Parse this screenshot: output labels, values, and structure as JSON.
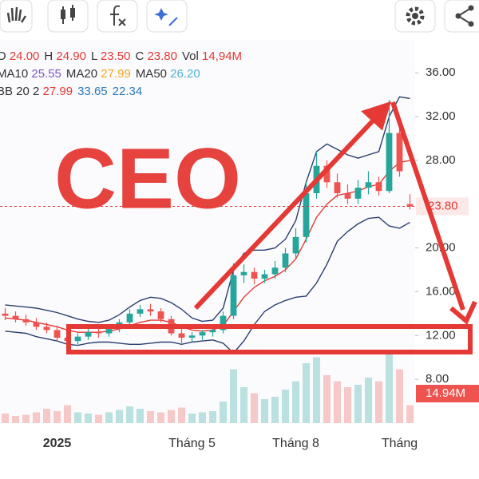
{
  "chart_data": {
    "type": "candlestick",
    "annotation": "CEO",
    "legend": [
      [
        {
          "label": "O",
          "value": "24.00",
          "color": "#e53935"
        },
        {
          "label": "H",
          "value": "24.90",
          "color": "#e53935"
        },
        {
          "label": "L",
          "value": "23.50",
          "color": "#e53935"
        },
        {
          "label": "C",
          "value": "23.80",
          "color": "#e53935"
        },
        {
          "label": "Vol",
          "value": "14,94M",
          "color": "#e53935"
        }
      ],
      [
        {
          "label": "MA10",
          "value": "25.55",
          "color": "#7e57c2"
        },
        {
          "label": "MA20",
          "value": "27.99",
          "color": "#f5a623"
        },
        {
          "label": "MA50",
          "value": "26.20",
          "color": "#4fb3d9"
        }
      ],
      [
        {
          "label": "BB 20 2",
          "value": "27.99",
          "color": "#e53935"
        },
        {
          "label": "",
          "value": "33.65",
          "color": "#2a7ab8"
        },
        {
          "label": "",
          "value": "22.34",
          "color": "#2a7ab8"
        }
      ]
    ],
    "categories": [
      null,
      null,
      null,
      null,
      null,
      "2025",
      null,
      null,
      null,
      null,
      null,
      null,
      null,
      null,
      null,
      null,
      null,
      null,
      "Tháng 5",
      null,
      null,
      null,
      null,
      null,
      null,
      null,
      null,
      null,
      "Tháng 8",
      null,
      null,
      null,
      null,
      null,
      null,
      null,
      null,
      null,
      "Tháng",
      null
    ],
    "open": [
      14.0,
      13.8,
      13.5,
      13.2,
      12.8,
      12.5,
      11.8,
      11.5,
      11.9,
      12.3,
      12.2,
      12.6,
      13.2,
      14.0,
      14.4,
      14.2,
      13.5,
      12.2,
      11.8,
      12.0,
      12.3,
      12.5,
      13.8,
      17.5,
      17.8,
      17.2,
      17.6,
      18.2,
      19.5,
      21.0,
      25.0,
      27.5,
      26.0,
      25.0,
      24.5,
      25.5,
      26.0,
      25.2,
      30.5,
      24.0
    ],
    "high": [
      14.5,
      14.2,
      13.9,
      13.6,
      13.2,
      12.9,
      12.2,
      12.2,
      12.6,
      12.7,
      12.9,
      13.5,
      14.4,
      14.8,
      14.9,
      14.5,
      13.8,
      12.6,
      12.3,
      12.5,
      12.8,
      14.2,
      18.6,
      18.5,
      18.2,
      18.0,
      18.8,
      20.0,
      21.8,
      26.0,
      28.8,
      28.0,
      26.8,
      25.8,
      26.2,
      27.0,
      26.5,
      33.5,
      31.5,
      24.9
    ],
    "low": [
      13.4,
      13.2,
      12.9,
      12.5,
      12.2,
      11.5,
      11.0,
      11.2,
      11.6,
      11.8,
      11.9,
      12.3,
      13.0,
      13.7,
      13.8,
      13.2,
      12.0,
      11.3,
      11.4,
      11.6,
      11.9,
      12.2,
      13.5,
      16.8,
      16.7,
      16.8,
      17.2,
      17.8,
      19.0,
      20.5,
      24.5,
      25.5,
      24.6,
      24.0,
      24.0,
      24.9,
      24.8,
      25.0,
      26.5,
      23.5
    ],
    "close": [
      13.8,
      13.5,
      13.2,
      12.8,
      12.5,
      11.8,
      11.5,
      11.9,
      12.3,
      12.2,
      12.6,
      13.2,
      14.0,
      14.4,
      14.2,
      13.5,
      12.2,
      11.8,
      12.0,
      12.3,
      12.5,
      13.8,
      17.5,
      17.8,
      17.2,
      17.6,
      18.2,
      19.5,
      21.0,
      25.0,
      27.5,
      26.0,
      25.0,
      24.5,
      25.5,
      26.0,
      25.2,
      30.5,
      27.0,
      23.8
    ],
    "volume": [
      8,
      6,
      7,
      9,
      12,
      10,
      15,
      9,
      8,
      7,
      9,
      11,
      14,
      12,
      10,
      9,
      11,
      13,
      8,
      9,
      10,
      18,
      45,
      30,
      25,
      20,
      22,
      28,
      35,
      50,
      55,
      40,
      35,
      30,
      32,
      38,
      35,
      60,
      45,
      14.94
    ],
    "volume_label": "14.94M",
    "lines": [
      {
        "name": "MA20",
        "color": "#e53935",
        "values": [
          13.6,
          13.5,
          13.4,
          13.2,
          13.0,
          12.8,
          12.5,
          12.3,
          12.3,
          12.3,
          12.4,
          12.6,
          12.9,
          13.2,
          13.4,
          13.4,
          13.2,
          12.8,
          12.5,
          12.4,
          12.5,
          12.9,
          14.2,
          15.5,
          16.4,
          17.0,
          17.4,
          18.0,
          19.0,
          20.8,
          22.8,
          24.0,
          24.8,
          25.0,
          25.2,
          25.6,
          25.8,
          27.0,
          27.8,
          27.99
        ]
      },
      {
        "name": "BB upper",
        "color": "#2c3e70",
        "values": [
          14.8,
          14.7,
          14.6,
          14.5,
          14.3,
          14.1,
          13.8,
          13.5,
          13.3,
          13.2,
          13.4,
          13.9,
          14.6,
          15.2,
          15.5,
          15.4,
          15.0,
          14.4,
          13.6,
          13.3,
          13.4,
          14.5,
          18.0,
          19.5,
          19.8,
          19.8,
          20.0,
          20.8,
          22.5,
          26.0,
          28.8,
          29.5,
          29.0,
          28.5,
          28.2,
          28.5,
          28.8,
          32.0,
          33.8,
          33.65
        ]
      },
      {
        "name": "BB lower",
        "color": "#2c3e70",
        "values": [
          12.4,
          12.3,
          12.2,
          11.9,
          11.7,
          11.5,
          11.2,
          11.1,
          11.3,
          11.4,
          11.4,
          11.3,
          11.2,
          11.2,
          11.3,
          11.4,
          11.4,
          11.2,
          11.4,
          11.5,
          11.6,
          11.3,
          10.4,
          11.5,
          13.0,
          14.2,
          14.8,
          15.2,
          15.5,
          15.6,
          16.8,
          18.5,
          20.6,
          21.5,
          22.2,
          22.7,
          22.8,
          22.0,
          21.8,
          22.34
        ]
      }
    ],
    "up_color": "#26a69a",
    "down_color": "#ef5350",
    "last_price": {
      "value": 23.8,
      "label": "23.80"
    },
    "ylim": [
      4,
      39
    ],
    "yticks": [
      {
        "value": 8,
        "label": "8.00"
      },
      {
        "value": 12,
        "label": "12.00"
      },
      {
        "value": 16,
        "label": "16.00"
      },
      {
        "value": 20,
        "label": "20.00"
      },
      {
        "value": 28,
        "label": "28.00"
      },
      {
        "value": 32,
        "label": "32.00"
      },
      {
        "value": 36,
        "label": "36.00"
      }
    ]
  }
}
